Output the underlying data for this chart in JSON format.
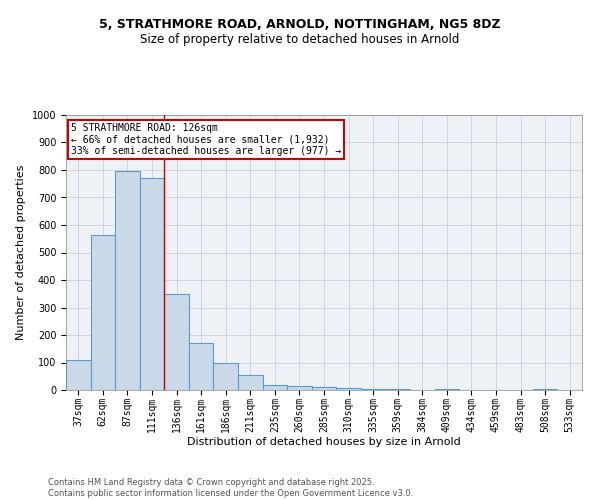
{
  "title_line1": "5, STRATHMORE ROAD, ARNOLD, NOTTINGHAM, NG5 8DZ",
  "title_line2": "Size of property relative to detached houses in Arnold",
  "xlabel": "Distribution of detached houses by size in Arnold",
  "ylabel": "Number of detached properties",
  "categories": [
    "37sqm",
    "62sqm",
    "87sqm",
    "111sqm",
    "136sqm",
    "161sqm",
    "186sqm",
    "211sqm",
    "235sqm",
    "260sqm",
    "285sqm",
    "310sqm",
    "335sqm",
    "359sqm",
    "384sqm",
    "409sqm",
    "434sqm",
    "459sqm",
    "483sqm",
    "508sqm",
    "533sqm"
  ],
  "values": [
    110,
    565,
    795,
    770,
    350,
    170,
    100,
    55,
    18,
    13,
    10,
    8,
    5,
    4,
    1,
    5,
    1,
    1,
    1,
    5,
    1
  ],
  "bar_color": "#c9d9e8",
  "bar_edge_color": "#5b9bd5",
  "annotation_text_line1": "5 STRATHMORE ROAD: 126sqm",
  "annotation_text_line2": "← 66% of detached houses are smaller (1,932)",
  "annotation_text_line3": "33% of semi-detached houses are larger (977) →",
  "annotation_box_facecolor": "#ffffff",
  "annotation_box_edgecolor": "#cc0000",
  "vline_color": "#cc0000",
  "vline_x_index": 3.5,
  "ylim": [
    0,
    1000
  ],
  "yticks": [
    0,
    100,
    200,
    300,
    400,
    500,
    600,
    700,
    800,
    900,
    1000
  ],
  "bg_color": "#eef2f7",
  "footer_text": "Contains HM Land Registry data © Crown copyright and database right 2025.\nContains public sector information licensed under the Open Government Licence v3.0.",
  "title_fontsize": 9,
  "subtitle_fontsize": 8.5,
  "tick_fontsize": 7,
  "label_fontsize": 8,
  "annotation_fontsize": 7,
  "footer_fontsize": 6
}
